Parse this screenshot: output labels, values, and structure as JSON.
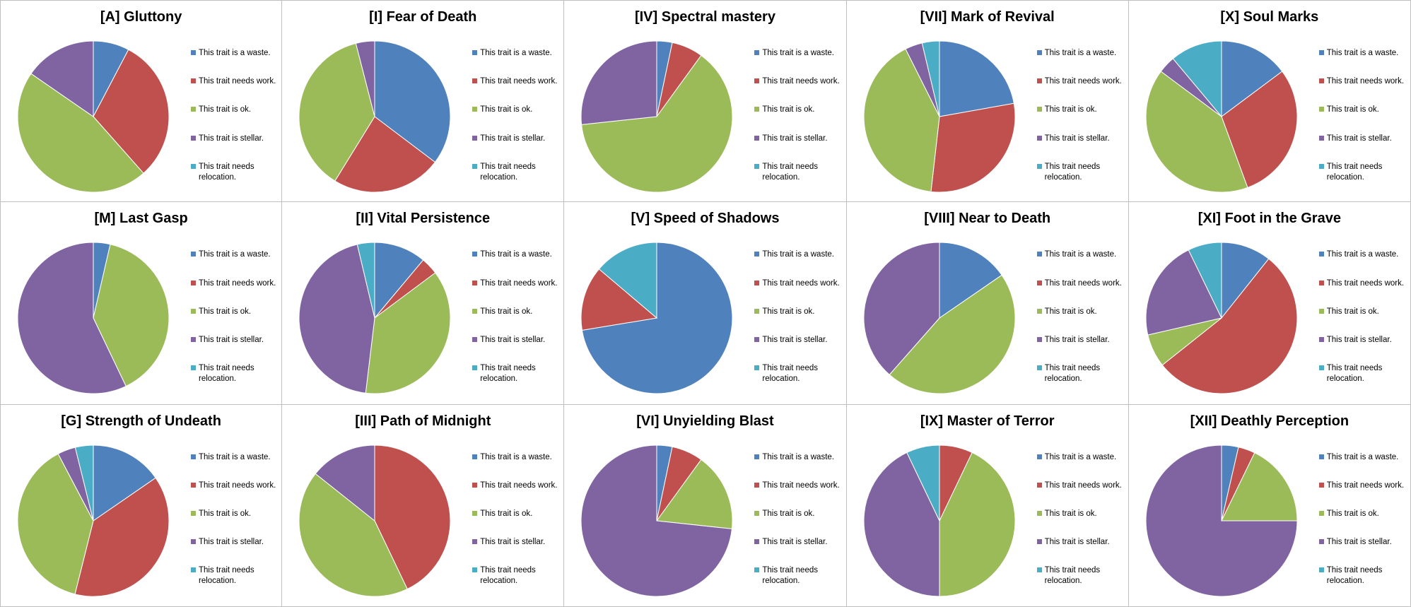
{
  "colors": [
    "#4F81BD",
    "#C0504D",
    "#9BBB59",
    "#8064A2",
    "#4BACC6"
  ],
  "legend_labels": [
    "This trait is a waste.",
    "This trait needs work.",
    "This trait is ok.",
    "This trait is stellar.",
    "This trait needs relocation."
  ],
  "chart_data": [
    {
      "type": "pie",
      "title": "[A] Gluttony",
      "categories": [
        "This trait is a waste.",
        "This trait needs work.",
        "This trait is ok.",
        "This trait is stellar.",
        "This trait needs relocation."
      ],
      "values": [
        7.7,
        30.8,
        46.2,
        15.4,
        0
      ],
      "legend": "right"
    },
    {
      "type": "pie",
      "title": "[I] Fear of Death",
      "categories": [
        "This trait is a waste.",
        "This trait needs work.",
        "This trait is ok.",
        "This trait is stellar.",
        "This trait needs relocation."
      ],
      "values": [
        35.3,
        23.5,
        37.2,
        4,
        0
      ],
      "legend": "right"
    },
    {
      "type": "pie",
      "title": "[IV] Spectral mastery",
      "categories": [
        "This trait is a waste.",
        "This trait needs work.",
        "This trait is ok.",
        "This trait is stellar.",
        "This trait needs relocation."
      ],
      "values": [
        3.3,
        6.7,
        63.3,
        26.7,
        0
      ],
      "legend": "right"
    },
    {
      "type": "pie",
      "title": "[VII] Mark of Revival",
      "categories": [
        "This trait is a waste.",
        "This trait needs work.",
        "This trait is ok.",
        "This trait is stellar.",
        "This trait needs relocation."
      ],
      "values": [
        22.2,
        29.6,
        40.8,
        3.7,
        3.7
      ],
      "legend": "right"
    },
    {
      "type": "pie",
      "title": "[X] Soul Marks",
      "categories": [
        "This trait is a waste.",
        "This trait needs work.",
        "This trait is ok.",
        "This trait is stellar.",
        "This trait needs relocation."
      ],
      "values": [
        14.8,
        29.6,
        40.8,
        3.7,
        11.1
      ],
      "legend": "right"
    },
    {
      "type": "pie",
      "title": "[M] Last Gasp",
      "categories": [
        "This trait is a waste.",
        "This trait needs work.",
        "This trait is ok.",
        "This trait is stellar.",
        "This trait needs relocation."
      ],
      "values": [
        3.6,
        0,
        39.3,
        57.1,
        0
      ],
      "legend": "right"
    },
    {
      "type": "pie",
      "title": "[II] Vital Persistence",
      "categories": [
        "This trait is a waste.",
        "This trait needs work.",
        "This trait is ok.",
        "This trait is stellar.",
        "This trait needs relocation."
      ],
      "values": [
        11.1,
        3.7,
        37.1,
        44.4,
        3.7
      ],
      "legend": "right"
    },
    {
      "type": "pie",
      "title": "[V] Speed of Shadows",
      "categories": [
        "This trait is a waste.",
        "This trait needs work.",
        "This trait is ok.",
        "This trait is stellar.",
        "This trait needs relocation."
      ],
      "values": [
        72.4,
        13.8,
        0,
        0,
        13.8
      ],
      "legend": "right"
    },
    {
      "type": "pie",
      "title": "[VIII] Near to Death",
      "categories": [
        "This trait is a waste.",
        "This trait needs work.",
        "This trait is ok.",
        "This trait is stellar.",
        "This trait needs relocation."
      ],
      "values": [
        15.4,
        0,
        46.1,
        38.5,
        0
      ],
      "legend": "right"
    },
    {
      "type": "pie",
      "title": "[XI] Foot in the Grave",
      "categories": [
        "This trait is a waste.",
        "This trait needs work.",
        "This trait is ok.",
        "This trait is stellar.",
        "This trait needs relocation."
      ],
      "values": [
        10.7,
        53.6,
        7.1,
        21.4,
        7.2
      ],
      "legend": "right"
    },
    {
      "type": "pie",
      "title": "[G] Strength of Undeath",
      "categories": [
        "This trait is a waste.",
        "This trait needs work.",
        "This trait is ok.",
        "This trait is stellar.",
        "This trait needs relocation."
      ],
      "values": [
        15.4,
        38.5,
        38.4,
        3.85,
        3.85
      ],
      "legend": "right"
    },
    {
      "type": "pie",
      "title": "[III] Path of Midnight",
      "categories": [
        "This trait is a waste.",
        "This trait needs work.",
        "This trait is ok.",
        "This trait is stellar.",
        "This trait needs relocation."
      ],
      "values": [
        0,
        42.9,
        42.8,
        14.3,
        0
      ],
      "legend": "right"
    },
    {
      "type": "pie",
      "title": "[VI] Unyielding Blast",
      "categories": [
        "This trait is a waste.",
        "This trait needs work.",
        "This trait is ok.",
        "This trait is stellar.",
        "This trait needs relocation."
      ],
      "values": [
        3.3,
        6.7,
        16.7,
        73.3,
        0
      ],
      "legend": "right"
    },
    {
      "type": "pie",
      "title": "[IX] Master of Terror",
      "categories": [
        "This trait is a waste.",
        "This trait needs work.",
        "This trait is ok.",
        "This trait is stellar.",
        "This trait needs relocation."
      ],
      "values": [
        0,
        7.1,
        42.9,
        42.9,
        7.1
      ],
      "legend": "right"
    },
    {
      "type": "pie",
      "title": "[XII] Deathly Perception",
      "categories": [
        "This trait is a waste.",
        "This trait needs work.",
        "This trait is ok.",
        "This trait is stellar.",
        "This trait needs relocation."
      ],
      "values": [
        3.6,
        3.6,
        17.8,
        75,
        0
      ],
      "legend": "right"
    }
  ]
}
